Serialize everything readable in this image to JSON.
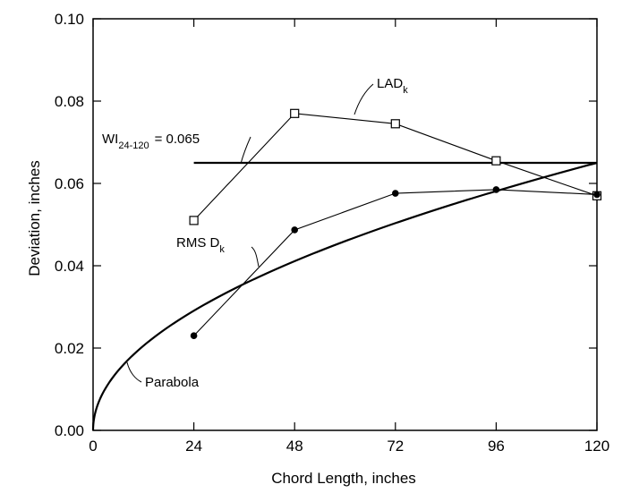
{
  "chart_data": {
    "type": "line",
    "xlabel": "Chord Length, inches",
    "ylabel": "Deviation, inches",
    "xlim": [
      0,
      120
    ],
    "ylim": [
      0,
      0.1
    ],
    "x_ticks": [
      "0",
      "24",
      "48",
      "72",
      "96",
      "120"
    ],
    "y_ticks": [
      "0.00",
      "0.02",
      "0.04",
      "0.06",
      "0.08",
      "0.10"
    ],
    "grid": false,
    "series": [
      {
        "key": "lad",
        "name_main": "LAD",
        "name_sub": "k",
        "marker": "open-square",
        "x": [
          24,
          48,
          72,
          96,
          120
        ],
        "y": [
          0.051,
          0.077,
          0.0745,
          0.0655,
          0.057
        ]
      },
      {
        "key": "rms",
        "name_main": "RMS D",
        "name_sub": "k",
        "marker": "filled-circle",
        "x": [
          24,
          48,
          72,
          96,
          120
        ],
        "y": [
          0.023,
          0.0487,
          0.0576,
          0.0585,
          0.0573
        ]
      },
      {
        "key": "parabola",
        "name_main": "Parabola",
        "marker": "none",
        "formula": "y = 0.065 * sqrt(x / 120)"
      },
      {
        "key": "wi",
        "name_main": "WI",
        "name_sub": "24-120",
        "value_text": "= 0.065",
        "marker": "none",
        "x": [
          24,
          120
        ],
        "y": [
          0.065,
          0.065
        ]
      }
    ]
  }
}
